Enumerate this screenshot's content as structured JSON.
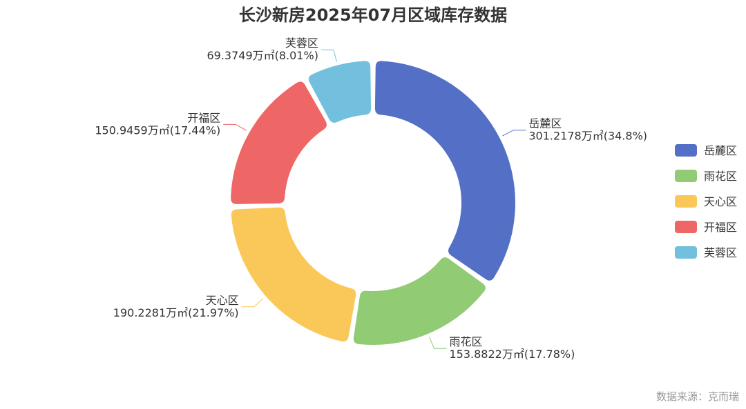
{
  "chart_data": {
    "type": "pie",
    "title": "长沙新房2025年07月区域库存数据",
    "unit": "万㎡",
    "legend_position": "right",
    "categories": [
      "岳麓区",
      "雨花区",
      "天心区",
      "开福区",
      "芙蓉区"
    ],
    "values": [
      301.2178,
      153.8822,
      190.2281,
      150.9459,
      69.3749
    ],
    "percents": [
      "34.8%",
      "17.78%",
      "21.97%",
      "17.44%",
      "8.01%"
    ],
    "value_labels": [
      "301.2178万㎡(34.8%)",
      "153.8822万㎡(17.78%)",
      "190.2281万㎡(21.97%)",
      "150.9459万㎡(17.44%)",
      "69.3749万㎡(8.01%)"
    ],
    "colors": [
      "#5470c6",
      "#91cc75",
      "#fac858",
      "#ee6666",
      "#73c0de"
    ]
  },
  "source": "数据来源：克而瑞"
}
